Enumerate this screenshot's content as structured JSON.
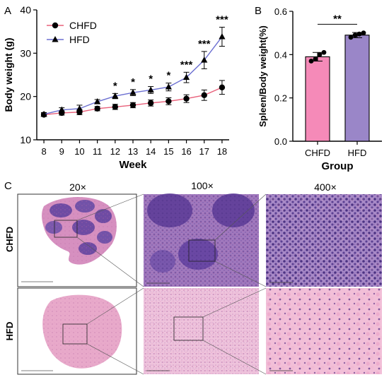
{
  "panel_letters": {
    "a": "A",
    "b": "B",
    "c": "C"
  },
  "colors": {
    "chfd_line": "#e8607a",
    "hfd_line": "#6b6fd1",
    "chfd_bar": "#f58ab8",
    "hfd_bar": "#9a86c8",
    "he_purple": "#6a4a9e",
    "he_pink": "#e9a3c5"
  },
  "chart_data": [
    {
      "type": "line",
      "panel": "A",
      "xlabel": "Week",
      "ylabel": "Body weight (g)",
      "x": [
        8,
        9,
        10,
        11,
        12,
        13,
        14,
        15,
        16,
        17,
        18
      ],
      "ylim": [
        10,
        40
      ],
      "yticks": [
        10,
        20,
        30,
        40
      ],
      "legend": "top-left",
      "series": [
        {
          "name": "CHFD",
          "marker": "circle",
          "values": [
            15.8,
            16.2,
            16.4,
            17.2,
            17.6,
            18.0,
            18.5,
            18.9,
            19.5,
            20.3,
            22.1
          ],
          "err": [
            0.4,
            0.5,
            0.6,
            0.5,
            0.6,
            0.6,
            0.7,
            0.8,
            0.9,
            1.2,
            1.6
          ]
        },
        {
          "name": "HFD",
          "marker": "triangle",
          "values": [
            15.9,
            16.9,
            17.2,
            18.8,
            20.1,
            20.9,
            21.5,
            22.2,
            24.4,
            28.4,
            33.8
          ],
          "err": [
            0.4,
            0.5,
            0.8,
            0.5,
            0.6,
            0.7,
            0.8,
            0.9,
            1.2,
            2.0,
            2.2
          ]
        }
      ],
      "annotations": [
        {
          "x": 12,
          "text": "*"
        },
        {
          "x": 13,
          "text": "*"
        },
        {
          "x": 14,
          "text": "*"
        },
        {
          "x": 15,
          "text": "*"
        },
        {
          "x": 16,
          "text": "***"
        },
        {
          "x": 17,
          "text": "***"
        },
        {
          "x": 18,
          "text": "***"
        }
      ]
    },
    {
      "type": "bar",
      "panel": "B",
      "xlabel": "Group",
      "ylabel": "Spleen/Body weight(%)",
      "categories": [
        "CHFD",
        "HFD"
      ],
      "values": [
        0.39,
        0.49
      ],
      "err": [
        0.02,
        0.012
      ],
      "points": [
        [
          0.37,
          0.38,
          0.4,
          0.41
        ],
        [
          0.48,
          0.49,
          0.495,
          0.5
        ]
      ],
      "ylim": [
        0.0,
        0.6
      ],
      "yticks": [
        "0.0",
        "0.2",
        "0.4",
        "0.6"
      ],
      "annotation": "**"
    }
  ],
  "histology": {
    "columns": [
      "20×",
      "100×",
      "400×"
    ],
    "rows": [
      "CHFD",
      "HFD"
    ]
  }
}
